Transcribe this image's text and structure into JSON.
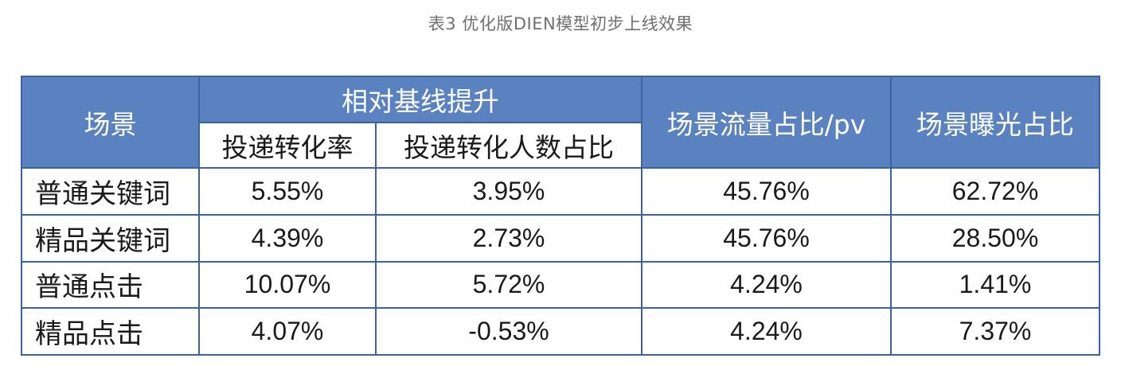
{
  "caption": "表3 优化版DIEN模型初步上线效果",
  "table": {
    "headers": {
      "scene": "场景",
      "group": "相对基线提升",
      "sub1": "投递转化率",
      "sub2": "投递转化人数占比",
      "traffic": "场景流量占比/pv",
      "exposure": "场景曝光占比"
    },
    "rows": [
      {
        "scene": "普通关键词",
        "conv_rate": "5.55%",
        "conv_users": "3.95%",
        "traffic": "45.76%",
        "exposure": "62.72%"
      },
      {
        "scene": "精品关键词",
        "conv_rate": "4.39%",
        "conv_users": "2.73%",
        "traffic": "45.76%",
        "exposure": "28.50%"
      },
      {
        "scene": "普通点击",
        "conv_rate": "10.07%",
        "conv_users": "5.72%",
        "traffic": "4.24%",
        "exposure": "1.41%"
      },
      {
        "scene": "精品点击",
        "conv_rate": "4.07%",
        "conv_users": "-0.53%",
        "traffic": "4.24%",
        "exposure": "7.37%"
      }
    ]
  }
}
